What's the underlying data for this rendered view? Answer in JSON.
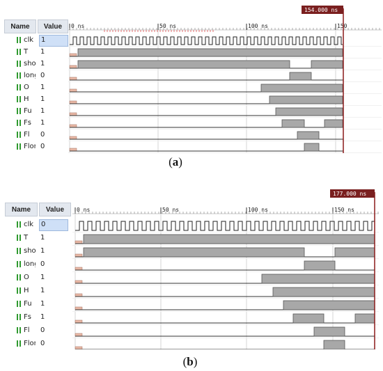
{
  "columns": {
    "name": "Name",
    "value": "Value"
  },
  "panels": [
    {
      "caption_letter": "a",
      "cursor_label": "154.000 ns",
      "time_labels": [
        "0 ns",
        "50 ns",
        "100 ns",
        "150"
      ],
      "signals": [
        {
          "name": "clk",
          "value": "1",
          "selected": true
        },
        {
          "name": "T",
          "value": "1"
        },
        {
          "name": "shor",
          "value": "1"
        },
        {
          "name": "long",
          "value": "0"
        },
        {
          "name": "O",
          "value": "1"
        },
        {
          "name": "H",
          "value": "1"
        },
        {
          "name": "Fu",
          "value": "1"
        },
        {
          "name": "Fs",
          "value": "1"
        },
        {
          "name": "Fl",
          "value": "0"
        },
        {
          "name": "Flon",
          "value": "0"
        }
      ]
    },
    {
      "caption_letter": "b",
      "cursor_label": "177.000 ns",
      "time_labels": [
        "0 ns",
        "50 ns",
        "100 ns",
        "150 ns"
      ],
      "signals": [
        {
          "name": "clk",
          "value": "0",
          "selected": true
        },
        {
          "name": "T",
          "value": "1"
        },
        {
          "name": "shor",
          "value": "1"
        },
        {
          "name": "long",
          "value": "0"
        },
        {
          "name": "O",
          "value": "1"
        },
        {
          "name": "H",
          "value": "1"
        },
        {
          "name": "Fu",
          "value": "1"
        },
        {
          "name": "Fs",
          "value": "1"
        },
        {
          "name": "Fl",
          "value": "0"
        },
        {
          "name": "Flon",
          "value": "0"
        }
      ]
    }
  ],
  "colors": {
    "bus_fill": "#a8a8a8",
    "bus_stroke": "#555555",
    "cursor": "#8b1a1a",
    "cursor_label_bg": "#7a1f1f",
    "init_fill": "#e9b8a6",
    "ruler_text": "#222222",
    "marker": "#e05050"
  }
}
